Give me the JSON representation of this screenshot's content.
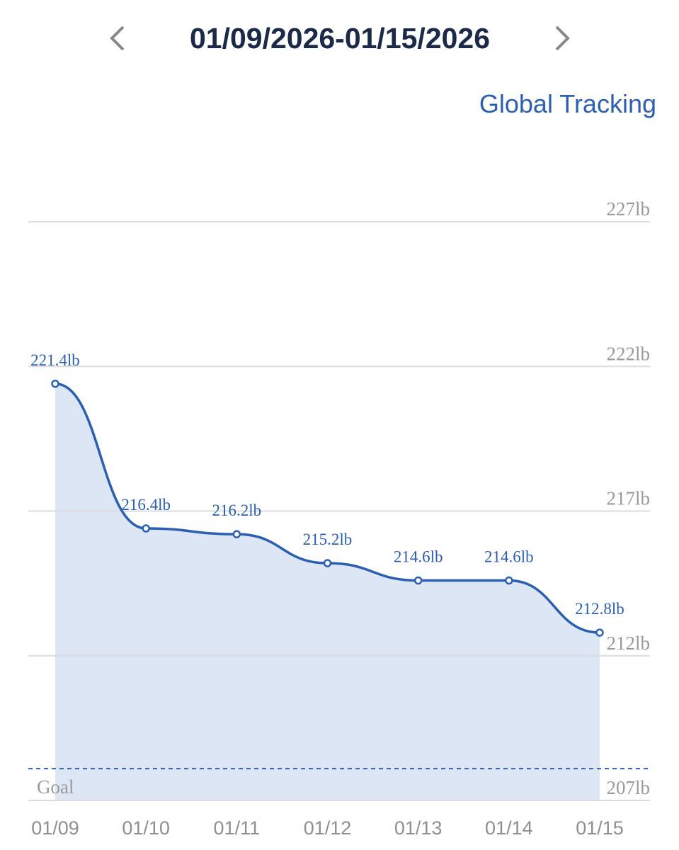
{
  "header": {
    "date_range": "01/09/2026-01/15/2026",
    "link": "Global Tracking"
  },
  "chart_data": {
    "type": "line",
    "categories": [
      "01/09",
      "01/10",
      "01/11",
      "01/12",
      "01/13",
      "01/14",
      "01/15"
    ],
    "values": [
      221.4,
      216.4,
      216.2,
      215.2,
      214.6,
      214.6,
      212.8
    ],
    "value_labels": [
      "221.4lb",
      "216.4lb",
      "216.2lb",
      "215.2lb",
      "214.6lb",
      "214.6lb",
      "212.8lb"
    ],
    "color": "#2b5fb3",
    "fill": "#dce6f4",
    "ylim": [
      207,
      227
    ],
    "yticks": [
      {
        "value": 207,
        "label": "207lb"
      },
      {
        "value": 212,
        "label": "212lb"
      },
      {
        "value": 217,
        "label": "217lb"
      },
      {
        "value": 222,
        "label": "222lb"
      },
      {
        "value": 227,
        "label": "227lb"
      }
    ],
    "grid": true,
    "goal": {
      "value": 208.1,
      "label": "Goal"
    }
  }
}
